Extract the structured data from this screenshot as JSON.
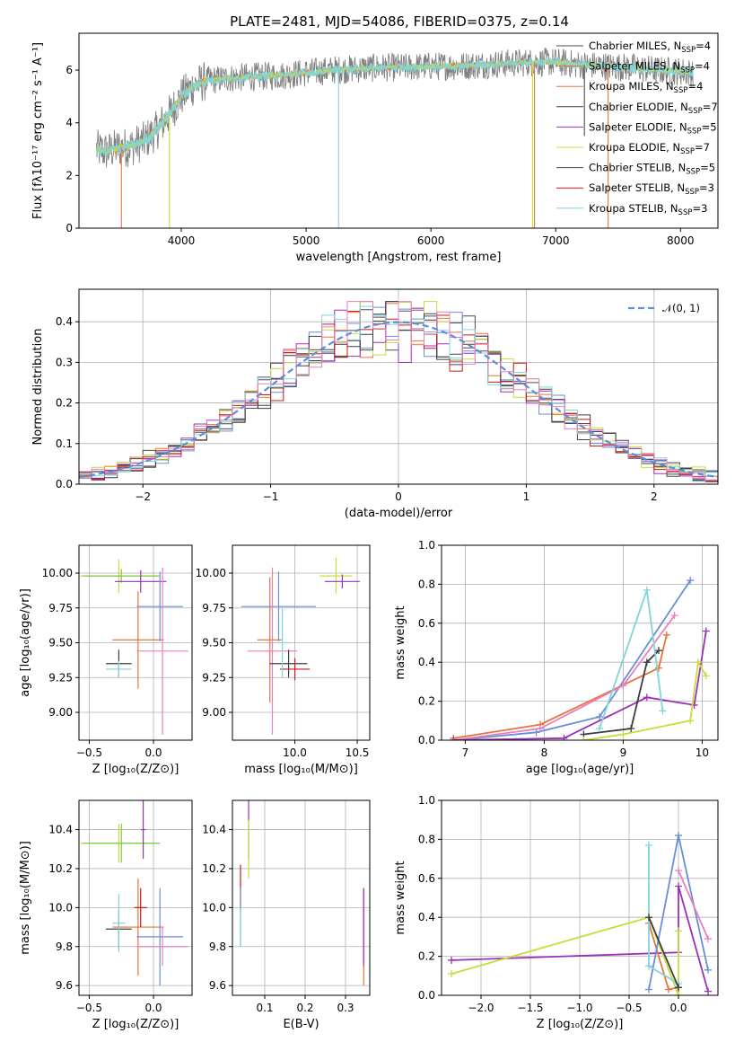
{
  "series_colors": [
    "#4d4d4d",
    "#e8743b",
    "#6a8ed8",
    "#3d3d3d",
    "#9b30b8",
    "#c8dc3c",
    "#444444",
    "#c81a1a",
    "#80d4dc",
    "#ea7fc0",
    "#7fc84a"
  ],
  "chart_data": [
    {
      "id": "spectrum",
      "type": "line",
      "title": "PLATE=2481, MJD=54086, FIBERID=0375, z=0.14",
      "xlabel": "wavelength [Angstrom, rest frame]",
      "ylabel": "Flux [fλ10⁻¹⁷ erg cm⁻² s⁻¹ A⁻¹]",
      "xlim": [
        3180,
        8300
      ],
      "ylim": [
        0,
        7.4
      ],
      "xticks": [
        4000,
        5000,
        6000,
        7000,
        8000
      ],
      "yticks": [
        0,
        2,
        4,
        6
      ],
      "grid": false,
      "legend_position": "top-right",
      "legend": [
        {
          "name": "Chabrier MILES, N",
          "sub": "SSP",
          "suffix": "=4",
          "color": "#4d4d4d"
        },
        {
          "name": "Salpeter MILES, N",
          "sub": "SSP",
          "suffix": "=4",
          "color": "#e8743b"
        },
        {
          "name": "Kroupa MILES, N",
          "sub": "SSP",
          "suffix": "=4",
          "color": "#e8743b"
        },
        {
          "name": "Chabrier ELODIE, N",
          "sub": "SSP",
          "suffix": "=7",
          "color": "#3d3d3d"
        },
        {
          "name": "Salpeter ELODIE, N",
          "sub": "SSP",
          "suffix": "=5",
          "color": "#9b30b8"
        },
        {
          "name": "Kroupa ELODIE, N",
          "sub": "SSP",
          "suffix": "=7",
          "color": "#c8dc3c"
        },
        {
          "name": "Chabrier STELIB, N",
          "sub": "SSP",
          "suffix": "=5",
          "color": "#444444"
        },
        {
          "name": "Salpeter STELIB, N",
          "sub": "SSP",
          "suffix": "=3",
          "color": "#c81a1a"
        },
        {
          "name": "Kroupa STELIB, N",
          "sub": "SSP",
          "suffix": "=3",
          "color": "#80d4dc"
        }
      ],
      "continuum": {
        "x": [
          3320,
          3400,
          3500,
          3600,
          3700,
          3800,
          3900,
          4000,
          4100,
          4200,
          4400,
          4600,
          4800,
          5000,
          5200,
          5400,
          5600,
          5800,
          6000,
          6200,
          6400,
          6600,
          6800,
          7000,
          7200,
          7400,
          7600,
          7800,
          8000,
          8100
        ],
        "y": [
          3.0,
          2.9,
          3.05,
          3.1,
          3.3,
          3.7,
          4.3,
          5.0,
          5.4,
          5.6,
          5.7,
          5.75,
          5.8,
          5.9,
          6.0,
          6.05,
          6.1,
          6.1,
          6.15,
          6.15,
          6.2,
          6.25,
          6.3,
          6.3,
          6.2,
          6.15,
          6.1,
          6.0,
          5.95,
          5.9
        ]
      },
      "dips": [
        {
          "x": 3520,
          "y": 0.0,
          "color": "#e8743b"
        },
        {
          "x": 3905,
          "y": 0.0,
          "color": "#c8dc3c"
        },
        {
          "x": 5260,
          "y": 0.0,
          "color": "#80d4dc"
        },
        {
          "x": 6815,
          "y": 0.0,
          "color": "#c8dc3c"
        },
        {
          "x": 6830,
          "y": 0.0,
          "color": "#e8743b"
        },
        {
          "x": 7230,
          "y": 3.5,
          "color": "#4d4d4d"
        },
        {
          "x": 7420,
          "y": 0.0,
          "color": "#e8743b"
        }
      ]
    },
    {
      "id": "residuals",
      "type": "histogram",
      "xlabel": "(data-model)/error",
      "ylabel": "Normed distribution",
      "xlim": [
        -2.5,
        2.5
      ],
      "ylim": [
        0,
        0.48
      ],
      "xticks": [
        -2,
        -1,
        0,
        1,
        2
      ],
      "yticks": [
        0.0,
        0.1,
        0.2,
        0.3,
        0.4
      ],
      "grid": true,
      "legend_position": "top-right",
      "legend": [
        {
          "name": "𝒩(0, 1)",
          "color": "#5b8fd8"
        }
      ],
      "bins": {
        "start": -2.5,
        "width": 0.1,
        "count": 50
      },
      "reference_curve": {
        "name": "N(0,1)",
        "mean": 0,
        "sigma": 1,
        "color": "#5b8fd8"
      }
    },
    {
      "id": "age-vs-Z",
      "type": "errorbar",
      "xlabel": "Z [log₁₀(Z/Z⊙)]",
      "ylabel": "age  [log₁₀(age/yr)]",
      "xlim": [
        -0.58,
        0.3
      ],
      "ylim": [
        8.8,
        10.2
      ],
      "xticks": [
        -0.5,
        0.0
      ],
      "yticks": [
        9.0,
        9.25,
        9.5,
        9.75,
        10.0
      ],
      "grid": true,
      "points": [
        {
          "x": -0.27,
          "y": 9.98,
          "xerr": 0.3,
          "yerr": 0.12,
          "color": "#c8dc3c"
        },
        {
          "x": -0.25,
          "y": 9.98,
          "xerr": 0.3,
          "yerr": 0.05,
          "color": "#7fc84a"
        },
        {
          "x": -0.1,
          "y": 9.94,
          "xerr": 0.2,
          "yerr": 0.08,
          "color": "#9b30b8"
        },
        {
          "x": -0.12,
          "y": 9.52,
          "xerr": 0.2,
          "yerr": 0.35,
          "color": "#e8743b"
        },
        {
          "x": 0.05,
          "y": 9.76,
          "xerr": 0.18,
          "yerr": 0.25,
          "color": "#6a8ed8"
        },
        {
          "x": 0.07,
          "y": 9.44,
          "xerr": 0.2,
          "yerr": 0.6,
          "color": "#ea7fc0"
        },
        {
          "x": -0.27,
          "y": 9.35,
          "xerr": 0.1,
          "yerr": 0.1,
          "color": "#3d3d3d"
        },
        {
          "x": -0.27,
          "y": 9.31,
          "xerr": 0.1,
          "yerr": 0.06,
          "color": "#80d4dc"
        }
      ]
    },
    {
      "id": "age-vs-mass",
      "type": "errorbar",
      "xlabel": "mass [log₁₀(M/M⊙)]",
      "ylabel": "",
      "xlim": [
        9.5,
        10.6
      ],
      "ylim": [
        8.8,
        10.2
      ],
      "xticks": [
        10.0,
        10.5
      ],
      "yticks": [
        9.0,
        9.25,
        9.5,
        9.75,
        10.0
      ],
      "grid": true,
      "points": [
        {
          "x": 10.33,
          "y": 9.98,
          "xerr": 0.13,
          "yerr": 0.13,
          "color": "#c8dc3c"
        },
        {
          "x": 10.38,
          "y": 9.94,
          "xerr": 0.14,
          "yerr": 0.05,
          "color": "#9b30b8"
        },
        {
          "x": 9.8,
          "y": 9.52,
          "xerr": 0.1,
          "yerr": 0.45,
          "color": "#e8743b"
        },
        {
          "x": 9.87,
          "y": 9.76,
          "xerr": 0.3,
          "yerr": 0.25,
          "color": "#6a8ed8"
        },
        {
          "x": 9.82,
          "y": 9.44,
          "xerr": 0.2,
          "yerr": 0.6,
          "color": "#ea7fc0"
        },
        {
          "x": 9.95,
          "y": 9.35,
          "xerr": 0.15,
          "yerr": 0.1,
          "color": "#3d3d3d"
        },
        {
          "x": 10.0,
          "y": 9.31,
          "xerr": 0.12,
          "yerr": 0.08,
          "color": "#c81a1a"
        },
        {
          "x": 9.9,
          "y": 9.5,
          "xerr": 0.05,
          "yerr": 0.25,
          "color": "#80d4dc"
        }
      ]
    },
    {
      "id": "massweight-vs-age",
      "type": "line",
      "xlabel": "age  [log₁₀(age/yr)]",
      "ylabel": "mass weight",
      "xlim": [
        6.7,
        10.2
      ],
      "ylim": [
        0,
        1.0
      ],
      "xticks": [
        7,
        8,
        9,
        10
      ],
      "yticks": [
        0.0,
        0.2,
        0.4,
        0.6,
        0.8,
        1.0
      ],
      "grid": true,
      "series": [
        {
          "color": "#e8743b",
          "x": [
            6.85,
            7.95,
            9.45,
            9.55
          ],
          "y": [
            0.01,
            0.08,
            0.37,
            0.54
          ]
        },
        {
          "color": "#6a8ed8",
          "x": [
            6.85,
            7.9,
            8.7,
            9.85
          ],
          "y": [
            0.0,
            0.04,
            0.12,
            0.82
          ]
        },
        {
          "color": "#ea7fc0",
          "x": [
            6.85,
            7.95,
            9.0,
            9.65
          ],
          "y": [
            0.0,
            0.06,
            0.28,
            0.64
          ]
        },
        {
          "color": "#9b30b8",
          "x": [
            6.85,
            8.25,
            9.3,
            9.9,
            10.05
          ],
          "y": [
            0.0,
            0.01,
            0.22,
            0.18,
            0.56
          ]
        },
        {
          "color": "#3d3d3d",
          "x": [
            8.5,
            9.1,
            9.3,
            9.45
          ],
          "y": [
            0.03,
            0.06,
            0.4,
            0.46
          ]
        },
        {
          "color": "#80d4dc",
          "x": [
            8.7,
            9.3,
            9.5
          ],
          "y": [
            0.06,
            0.77,
            0.15
          ]
        },
        {
          "color": "#c8dc3c",
          "x": [
            8.5,
            9.0,
            9.85,
            9.95,
            10.05
          ],
          "y": [
            0.0,
            0.03,
            0.1,
            0.4,
            0.33
          ]
        }
      ]
    },
    {
      "id": "mass-vs-Z",
      "type": "errorbar",
      "xlabel": "Z [log₁₀(Z/Z⊙)]",
      "ylabel": "mass [log₁₀(M/M⊙)]",
      "xlim": [
        -0.58,
        0.3
      ],
      "ylim": [
        9.55,
        10.55
      ],
      "xticks": [
        -0.5,
        0.0
      ],
      "yticks": [
        9.6,
        9.8,
        10.0,
        10.2,
        10.4
      ],
      "grid": true,
      "points": [
        {
          "x": -0.27,
          "y": 10.33,
          "xerr": 0.3,
          "yerr": 0.1,
          "color": "#c8dc3c"
        },
        {
          "x": -0.25,
          "y": 10.33,
          "xerr": 0.3,
          "yerr": 0.1,
          "color": "#7fc84a"
        },
        {
          "x": -0.08,
          "y": 10.4,
          "xerr": 0.02,
          "yerr": 0.15,
          "color": "#9b30b8"
        },
        {
          "x": -0.12,
          "y": 9.9,
          "xerr": 0.2,
          "yerr": 0.25,
          "color": "#e8743b"
        },
        {
          "x": 0.05,
          "y": 9.85,
          "xerr": 0.18,
          "yerr": 0.25,
          "color": "#6a8ed8"
        },
        {
          "x": 0.07,
          "y": 9.8,
          "xerr": 0.2,
          "yerr": 0.1,
          "color": "#ea7fc0"
        },
        {
          "x": -0.27,
          "y": 9.89,
          "xerr": 0.1,
          "yerr": 0.1,
          "color": "#3d3d3d"
        },
        {
          "x": -0.1,
          "y": 10.0,
          "xerr": 0.05,
          "yerr": 0.1,
          "color": "#c81a1a"
        },
        {
          "x": -0.27,
          "y": 9.92,
          "xerr": 0.05,
          "yerr": 0.15,
          "color": "#80d4dc"
        }
      ]
    },
    {
      "id": "mass-vs-EBV",
      "type": "errorbar",
      "xlabel": "E(B-V)",
      "ylabel": "",
      "xlim": [
        0.02,
        0.36
      ],
      "ylim": [
        9.55,
        10.55
      ],
      "xticks": [
        0.1,
        0.2,
        0.3
      ],
      "yticks": [
        9.6,
        9.8,
        10.0,
        10.2,
        10.4
      ],
      "grid": true,
      "points": [
        {
          "x": 0.06,
          "y": 10.4,
          "xerr": 0.0,
          "yerr": 0.15,
          "color": "#9b30b8"
        },
        {
          "x": 0.06,
          "y": 10.3,
          "xerr": 0.0,
          "yerr": 0.15,
          "color": "#c8dc3c"
        },
        {
          "x": 0.04,
          "y": 10.1,
          "xerr": 0.0,
          "yerr": 0.12,
          "color": "#c81a1a"
        },
        {
          "x": 0.04,
          "y": 9.95,
          "xerr": 0.0,
          "yerr": 0.15,
          "color": "#6a8ed8"
        },
        {
          "x": 0.04,
          "y": 9.9,
          "xerr": 0.0,
          "yerr": 0.1,
          "color": "#80d4dc"
        },
        {
          "x": 0.345,
          "y": 9.85,
          "xerr": 0.0,
          "yerr": 0.25,
          "color": "#e8743b"
        },
        {
          "x": 0.345,
          "y": 9.9,
          "xerr": 0.0,
          "yerr": 0.2,
          "color": "#9b30b8"
        }
      ]
    },
    {
      "id": "massweight-vs-Z",
      "type": "line",
      "xlabel": "Z [log₁₀(Z/Z⊙)]",
      "ylabel": "mass weight",
      "xlim": [
        -2.4,
        0.4
      ],
      "ylim": [
        0,
        1.0
      ],
      "xticks": [
        -2.0,
        -1.5,
        -1.0,
        -0.5,
        0.0
      ],
      "yticks": [
        0.0,
        0.2,
        0.4,
        0.6,
        0.8,
        1.0
      ],
      "grid": true,
      "series": [
        {
          "color": "#9b30b8",
          "x": [
            -2.3,
            0.0,
            0.0,
            0.3
          ],
          "y": [
            0.18,
            0.22,
            0.56,
            0.02
          ]
        },
        {
          "color": "#c8dc3c",
          "x": [
            -2.3,
            -0.3,
            0.0,
            0.0
          ],
          "y": [
            0.11,
            0.4,
            0.0,
            0.33
          ]
        },
        {
          "color": "#e8743b",
          "x": [
            -0.3,
            -0.1,
            0.0
          ],
          "y": [
            0.37,
            0.03,
            0.04
          ]
        },
        {
          "color": "#6a8ed8",
          "x": [
            -0.3,
            0.0,
            0.3
          ],
          "y": [
            0.03,
            0.82,
            0.13
          ]
        },
        {
          "color": "#ea7fc0",
          "x": [
            0.0,
            0.3
          ],
          "y": [
            0.64,
            0.29
          ]
        },
        {
          "color": "#80d4dc",
          "x": [
            -0.3,
            -0.3,
            0.0
          ],
          "y": [
            0.77,
            0.15,
            0.06
          ]
        },
        {
          "color": "#3d3d3d",
          "x": [
            -0.3,
            0.0
          ],
          "y": [
            0.4,
            0.04
          ]
        }
      ]
    }
  ]
}
